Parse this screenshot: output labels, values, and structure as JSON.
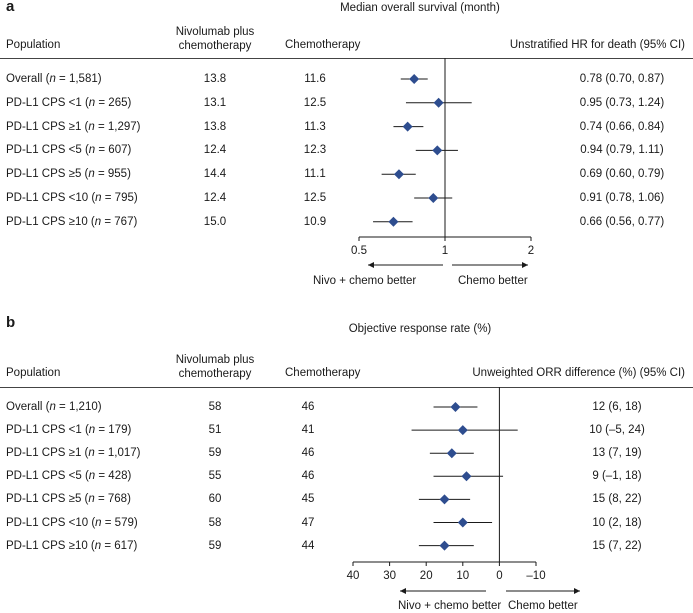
{
  "panel_a": {
    "label": "a",
    "title": "Median overall survival (month)",
    "headers": {
      "population": "Population",
      "nivo_line1": "Nivolumab plus",
      "nivo_line2": "chemotherapy",
      "chemo": "Chemotherapy",
      "effect": "Unstratified HR for death (95% CI)"
    },
    "rows": [
      {
        "pre": "Overall (",
        "n": "n",
        "post": " = 1,581)",
        "nivo": "13.8",
        "chemo": "11.6",
        "ci_text": "0.78 (0.70, 0.87)"
      },
      {
        "pre": "PD-L1 CPS <1 (",
        "n": "n",
        "post": " = 265)",
        "nivo": "13.1",
        "chemo": "12.5",
        "ci_text": "0.95 (0.73, 1.24)"
      },
      {
        "pre": "PD-L1 CPS ≥1 (",
        "n": "n",
        "post": " = 1,297)",
        "nivo": "13.8",
        "chemo": "11.3",
        "ci_text": "0.74 (0.66, 0.84)"
      },
      {
        "pre": "PD-L1 CPS <5 (",
        "n": "n",
        "post": " = 607)",
        "nivo": "12.4",
        "chemo": "12.3",
        "ci_text": "0.94 (0.79, 1.11)"
      },
      {
        "pre": "PD-L1 CPS ≥5 (",
        "n": "n",
        "post": " = 955)",
        "nivo": "14.4",
        "chemo": "11.1",
        "ci_text": "0.69 (0.60, 0.79)"
      },
      {
        "pre": "PD-L1 CPS <10 (",
        "n": "n",
        "post": " = 795)",
        "nivo": "12.4",
        "chemo": "12.5",
        "ci_text": "0.91 (0.78, 1.06)"
      },
      {
        "pre": "PD-L1 CPS ≥10 (",
        "n": "n",
        "post": " = 767)",
        "nivo": "15.0",
        "chemo": "10.9",
        "ci_text": "0.66 (0.56, 0.77)"
      }
    ],
    "left_label": "Nivo + chemo better",
    "right_label": "Chemo better"
  },
  "panel_b": {
    "label": "b",
    "title": "Objective response rate (%)",
    "headers": {
      "population": "Population",
      "nivo_line1": "Nivolumab plus",
      "nivo_line2": "chemotherapy",
      "chemo": "Chemotherapy",
      "effect": "Unweighted ORR difference (%) (95% CI)"
    },
    "rows": [
      {
        "pre": "Overall (",
        "n": "n",
        "post": " = 1,210)",
        "nivo": "58",
        "chemo": "46",
        "ci_text": "12 (6, 18)"
      },
      {
        "pre": "PD-L1 CPS <1 (",
        "n": "n",
        "post": " = 179)",
        "nivo": "51",
        "chemo": "41",
        "ci_text": "10 (–5, 24)"
      },
      {
        "pre": "PD-L1 CPS ≥1 (",
        "n": "n",
        "post": " = 1,017)",
        "nivo": "59",
        "chemo": "46",
        "ci_text": "13 (7, 19)"
      },
      {
        "pre": "PD-L1 CPS <5 (",
        "n": "n",
        "post": " = 428)",
        "nivo": "55",
        "chemo": "46",
        "ci_text": "9 (–1, 18)"
      },
      {
        "pre": "PD-L1 CPS ≥5 (",
        "n": "n",
        "post": " = 768)",
        "nivo": "60",
        "chemo": "45",
        "ci_text": "15 (8, 22)"
      },
      {
        "pre": "PD-L1 CPS <10 (",
        "n": "n",
        "post": " = 579)",
        "nivo": "58",
        "chemo": "47",
        "ci_text": "10 (2, 18)"
      },
      {
        "pre": "PD-L1 CPS ≥10 (",
        "n": "n",
        "post": " = 617)",
        "nivo": "59",
        "chemo": "44",
        "ci_text": "15 (7, 22)"
      }
    ],
    "left_label": "Nivo + chemo better",
    "right_label": "Chemo better"
  },
  "colors": {
    "marker": "#2e4d8f",
    "line": "#1a1a1a"
  },
  "chart_data": [
    {
      "type": "forest",
      "title": "Median overall survival (month)",
      "xlabel": "Unstratified HR for death (95% CI)",
      "xscale": "log2",
      "xlim": [
        0.5,
        2
      ],
      "xticks": [
        0.5,
        1,
        2
      ],
      "tick_labels": [
        "0.5",
        "1",
        "2"
      ],
      "reference": 1,
      "categories": [
        "Overall",
        "PD-L1 CPS <1",
        "PD-L1 CPS ≥1",
        "PD-L1 CPS <5",
        "PD-L1 CPS ≥5",
        "PD-L1 CPS <10",
        "PD-L1 CPS ≥10"
      ],
      "estimate": [
        0.78,
        0.95,
        0.74,
        0.94,
        0.69,
        0.91,
        0.66
      ],
      "lower": [
        0.7,
        0.73,
        0.66,
        0.79,
        0.6,
        0.78,
        0.56
      ],
      "upper": [
        0.87,
        1.24,
        0.84,
        1.11,
        0.79,
        1.06,
        0.77
      ]
    },
    {
      "type": "forest",
      "title": "Objective response rate (%)",
      "xlabel": "Unweighted ORR difference (%) (95% CI)",
      "xscale": "reversed",
      "xlim": [
        40,
        -10
      ],
      "xticks": [
        40,
        30,
        20,
        10,
        0,
        -10
      ],
      "tick_labels": [
        "40",
        "30",
        "20",
        "10",
        "0",
        "–10"
      ],
      "reference": 0,
      "categories": [
        "Overall",
        "PD-L1 CPS <1",
        "PD-L1 CPS ≥1",
        "PD-L1 CPS <5",
        "PD-L1 CPS ≥5",
        "PD-L1 CPS <10",
        "PD-L1 CPS ≥10"
      ],
      "estimate": [
        12,
        10,
        13,
        9,
        15,
        10,
        15
      ],
      "lower": [
        6,
        -5,
        7,
        -1,
        8,
        2,
        7
      ],
      "upper": [
        18,
        24,
        19,
        18,
        22,
        18,
        22
      ]
    }
  ]
}
